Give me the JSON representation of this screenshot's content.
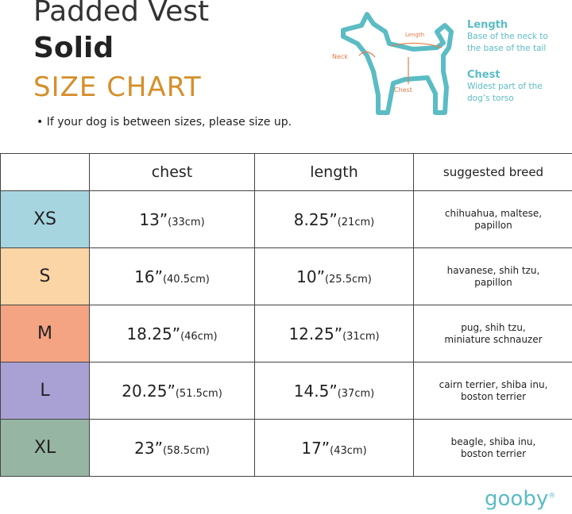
{
  "header": {
    "title": "Padded Vest",
    "subtitle": "Solid",
    "heading": "SIZE CHART",
    "note": "• If your dog is between sizes, please size up."
  },
  "diagram": {
    "neck_label": "Neck",
    "length_label": "Length",
    "chest_label": "Chest",
    "legend": [
      {
        "title": "Length",
        "lines": [
          "Base of the neck to",
          "the base of the tail"
        ]
      },
      {
        "title": "Chest",
        "lines": [
          "Widest part of the",
          "dog’s torso"
        ]
      }
    ]
  },
  "table": {
    "headers": [
      "chest",
      "length",
      "suggested breed"
    ],
    "rows": [
      {
        "size": "XS",
        "color": "#a6d5df",
        "chest": [
          "13”",
          "(33cm)"
        ],
        "length": [
          "8.25”",
          "(21cm)"
        ],
        "breed": [
          "chihuahua, maltese,",
          "papillon"
        ]
      },
      {
        "size": "S",
        "color": "#fbd5a6",
        "chest": [
          "16”",
          "(40.5cm)"
        ],
        "length": [
          "10”",
          "(25.5cm)"
        ],
        "breed": [
          "havanese, shih tzu,",
          "papillon"
        ]
      },
      {
        "size": "M",
        "color": "#f4a383",
        "chest": [
          "18.25”",
          "(46cm)"
        ],
        "length": [
          "12.25”",
          "(31cm)"
        ],
        "breed": [
          "pug, shih tzu,",
          "miniature schnauzer"
        ]
      },
      {
        "size": "L",
        "color": "#a9a1d3",
        "chest": [
          "20.25”",
          "(51.5cm)"
        ],
        "length": [
          "14.5”",
          "(37cm)"
        ],
        "breed": [
          "cairn terrier, shiba inu,",
          "boston terrier"
        ]
      },
      {
        "size": "XL",
        "color": "#97b5a3",
        "chest": [
          "23”",
          "(58.5cm)"
        ],
        "length": [
          "17”",
          "(43cm)"
        ],
        "breed": [
          "beagle, shiba inu,",
          "boston terrier"
        ]
      }
    ]
  },
  "footer": {
    "logo": "gooby",
    "mark": "®"
  }
}
